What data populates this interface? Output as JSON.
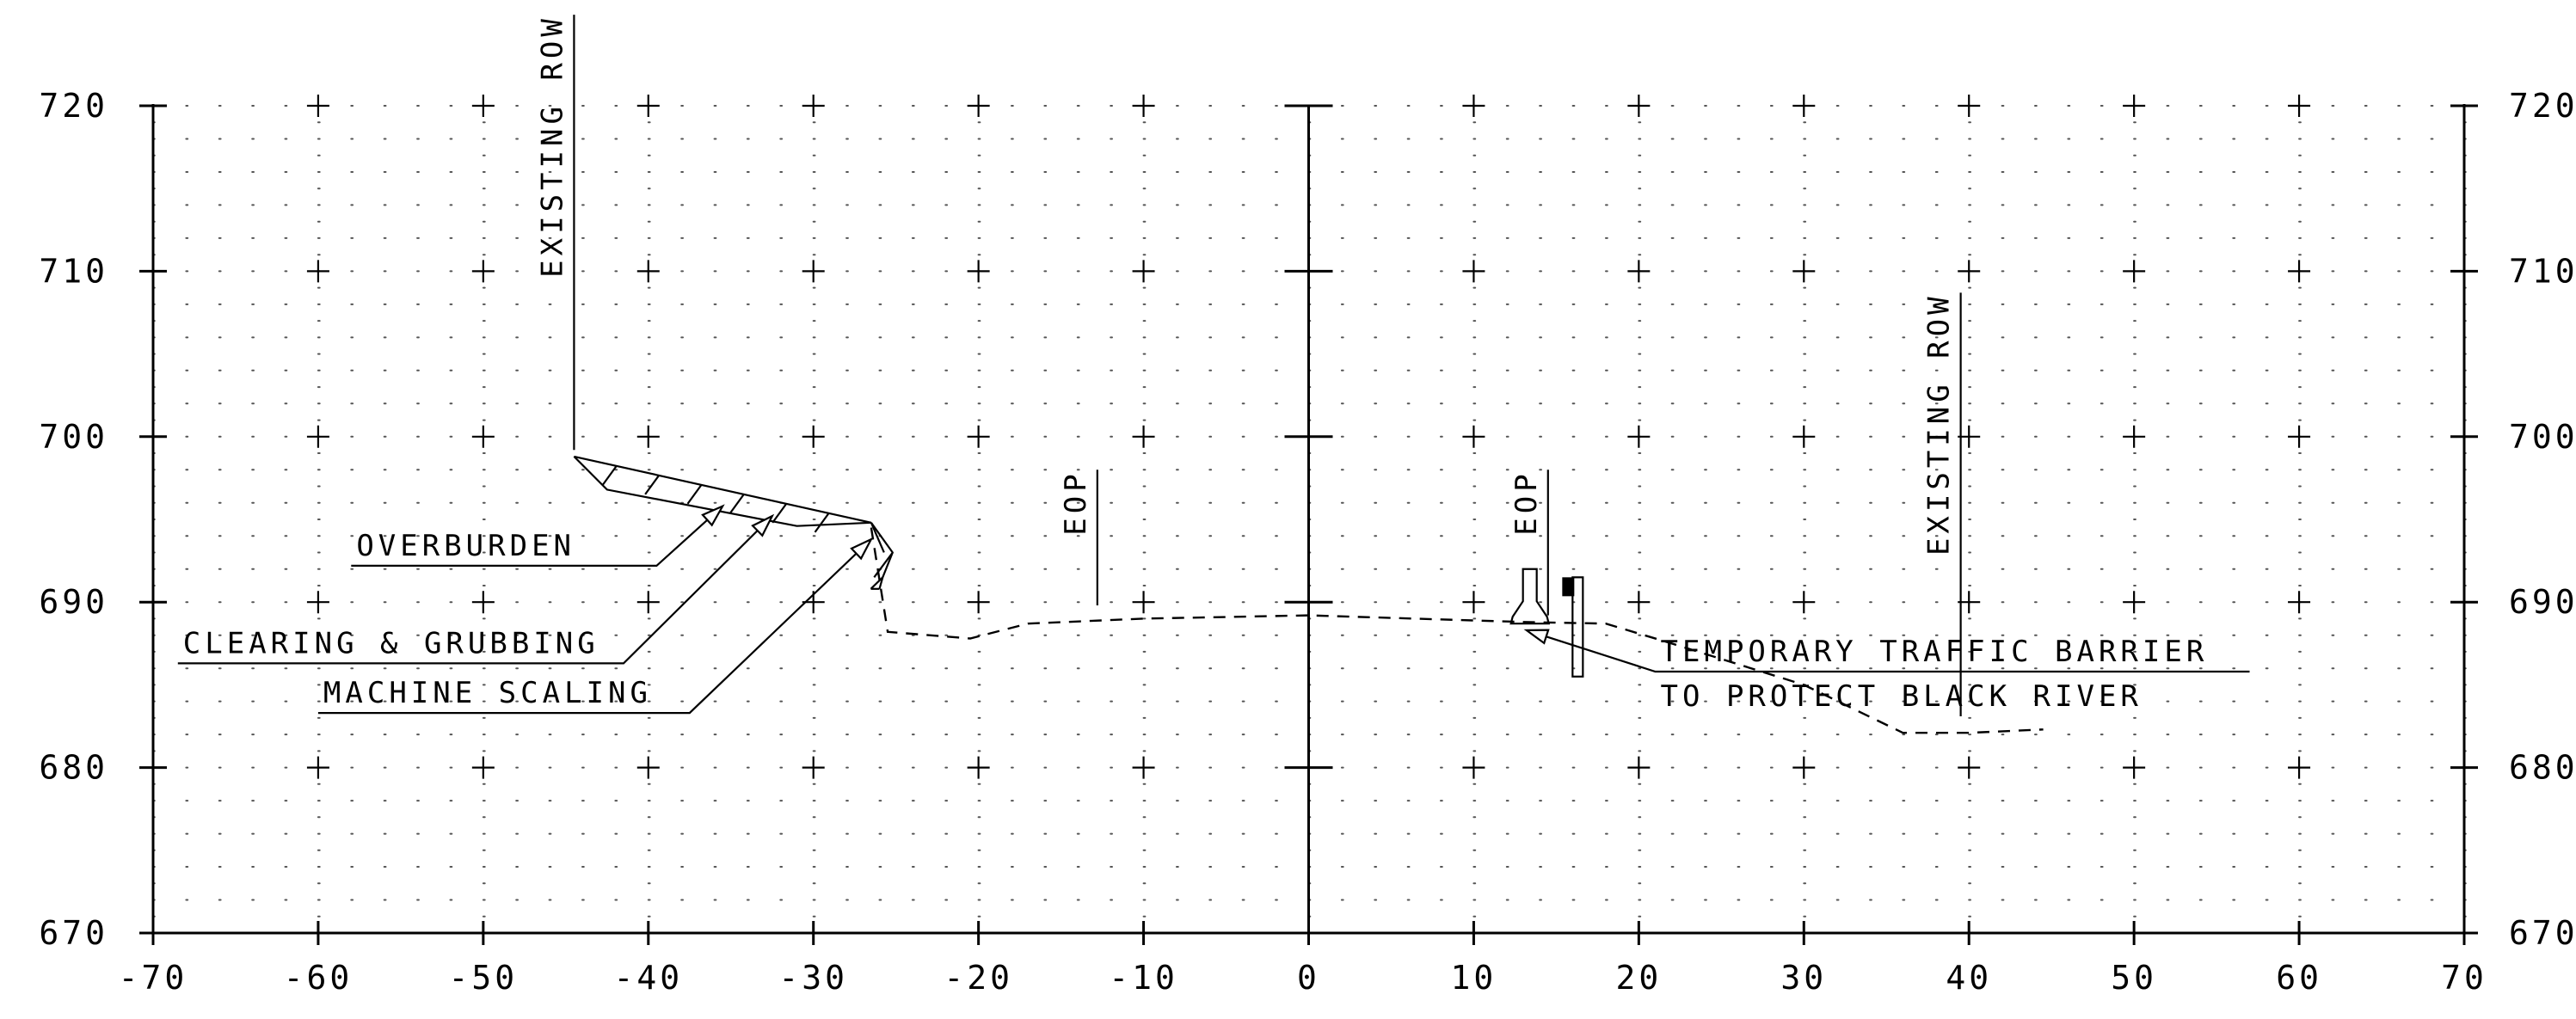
{
  "chart_data": {
    "type": "line",
    "title": "",
    "xlabel": "",
    "ylabel": "",
    "xlim": [
      -70,
      70
    ],
    "ylim": [
      670,
      720
    ],
    "x_ticks": [
      "-70",
      "-60",
      "-50",
      "-40",
      "-30",
      "-20",
      "-10",
      "0",
      "10",
      "20",
      "30",
      "40",
      "50",
      "60",
      "70"
    ],
    "y_ticks": [
      "670",
      "680",
      "690",
      "700",
      "710",
      "720"
    ],
    "grid": "dotted minor grid with plus markers at major intersections",
    "series": [
      {
        "line_style": "dashed",
        "points": [
          [
            -26.5,
            694.5
          ],
          [
            -25.5,
            688.2
          ],
          [
            -20.5,
            687.8
          ],
          [
            -17,
            688.7
          ],
          [
            -10,
            689
          ],
          [
            0,
            689.2
          ],
          [
            13,
            688.8
          ],
          [
            18,
            688.7
          ],
          [
            22,
            687.5
          ],
          [
            30,
            685
          ],
          [
            36,
            682.1
          ],
          [
            40,
            682.1
          ],
          [
            44.5,
            682.3
          ]
        ]
      }
    ],
    "cut_section": {
      "top_slope": [
        [
          -44.5,
          698.8
        ],
        [
          -26.5,
          694.8
        ]
      ],
      "bottom_slope": [
        [
          -42.5,
          696.8
        ],
        [
          -31,
          694.6
        ],
        [
          -26.5,
          694.8
        ]
      ],
      "face": [
        [
          -26.5,
          694.8
        ],
        [
          -25.2,
          693.0
        ],
        [
          -25.8,
          691.5
        ],
        [
          -26.0,
          690.8
        ]
      ]
    },
    "verticals": [
      {
        "label": "EXISTING ROW",
        "x": -44.5,
        "y_from": 699.2,
        "y_to": 725.5
      },
      {
        "label": "EOP",
        "x": -12.8,
        "y_from": 689.8,
        "y_to": 698
      },
      {
        "label": "EOP",
        "x": 14.5,
        "y_from": 689.2,
        "y_to": 698
      },
      {
        "label": "EXISTING ROW",
        "x": 39.5,
        "y_from": 683.1,
        "y_to": 708.7
      }
    ],
    "barrier": {
      "x": 13.4,
      "y_base": 688.7,
      "height": 3.3
    },
    "wall": {
      "x": 16.3,
      "y_bottom": 685.5,
      "y_top": 691.5
    },
    "annotations": [
      {
        "text": "OVERBURDEN",
        "line": [
          [
            -58,
            692.2
          ],
          [
            -39.5,
            692.2
          ],
          [
            -35.5,
            695.8
          ]
        ]
      },
      {
        "text": "CLEARING & GRUBBING",
        "line": [
          [
            -68.5,
            686.3
          ],
          [
            -41.5,
            686.3
          ],
          [
            -32.5,
            695.2
          ]
        ]
      },
      {
        "text": "MACHINE SCALING",
        "line": [
          [
            -60,
            683.3
          ],
          [
            -37.5,
            683.3
          ],
          [
            -26.5,
            693.8
          ]
        ]
      },
      {
        "lines": [
          "TEMPORARY TRAFFIC BARRIER",
          "TO PROTECT BLACK RIVER"
        ],
        "line": [
          [
            57,
            685.8
          ],
          [
            21,
            685.8
          ],
          [
            13.2,
            688.3
          ]
        ]
      }
    ]
  }
}
